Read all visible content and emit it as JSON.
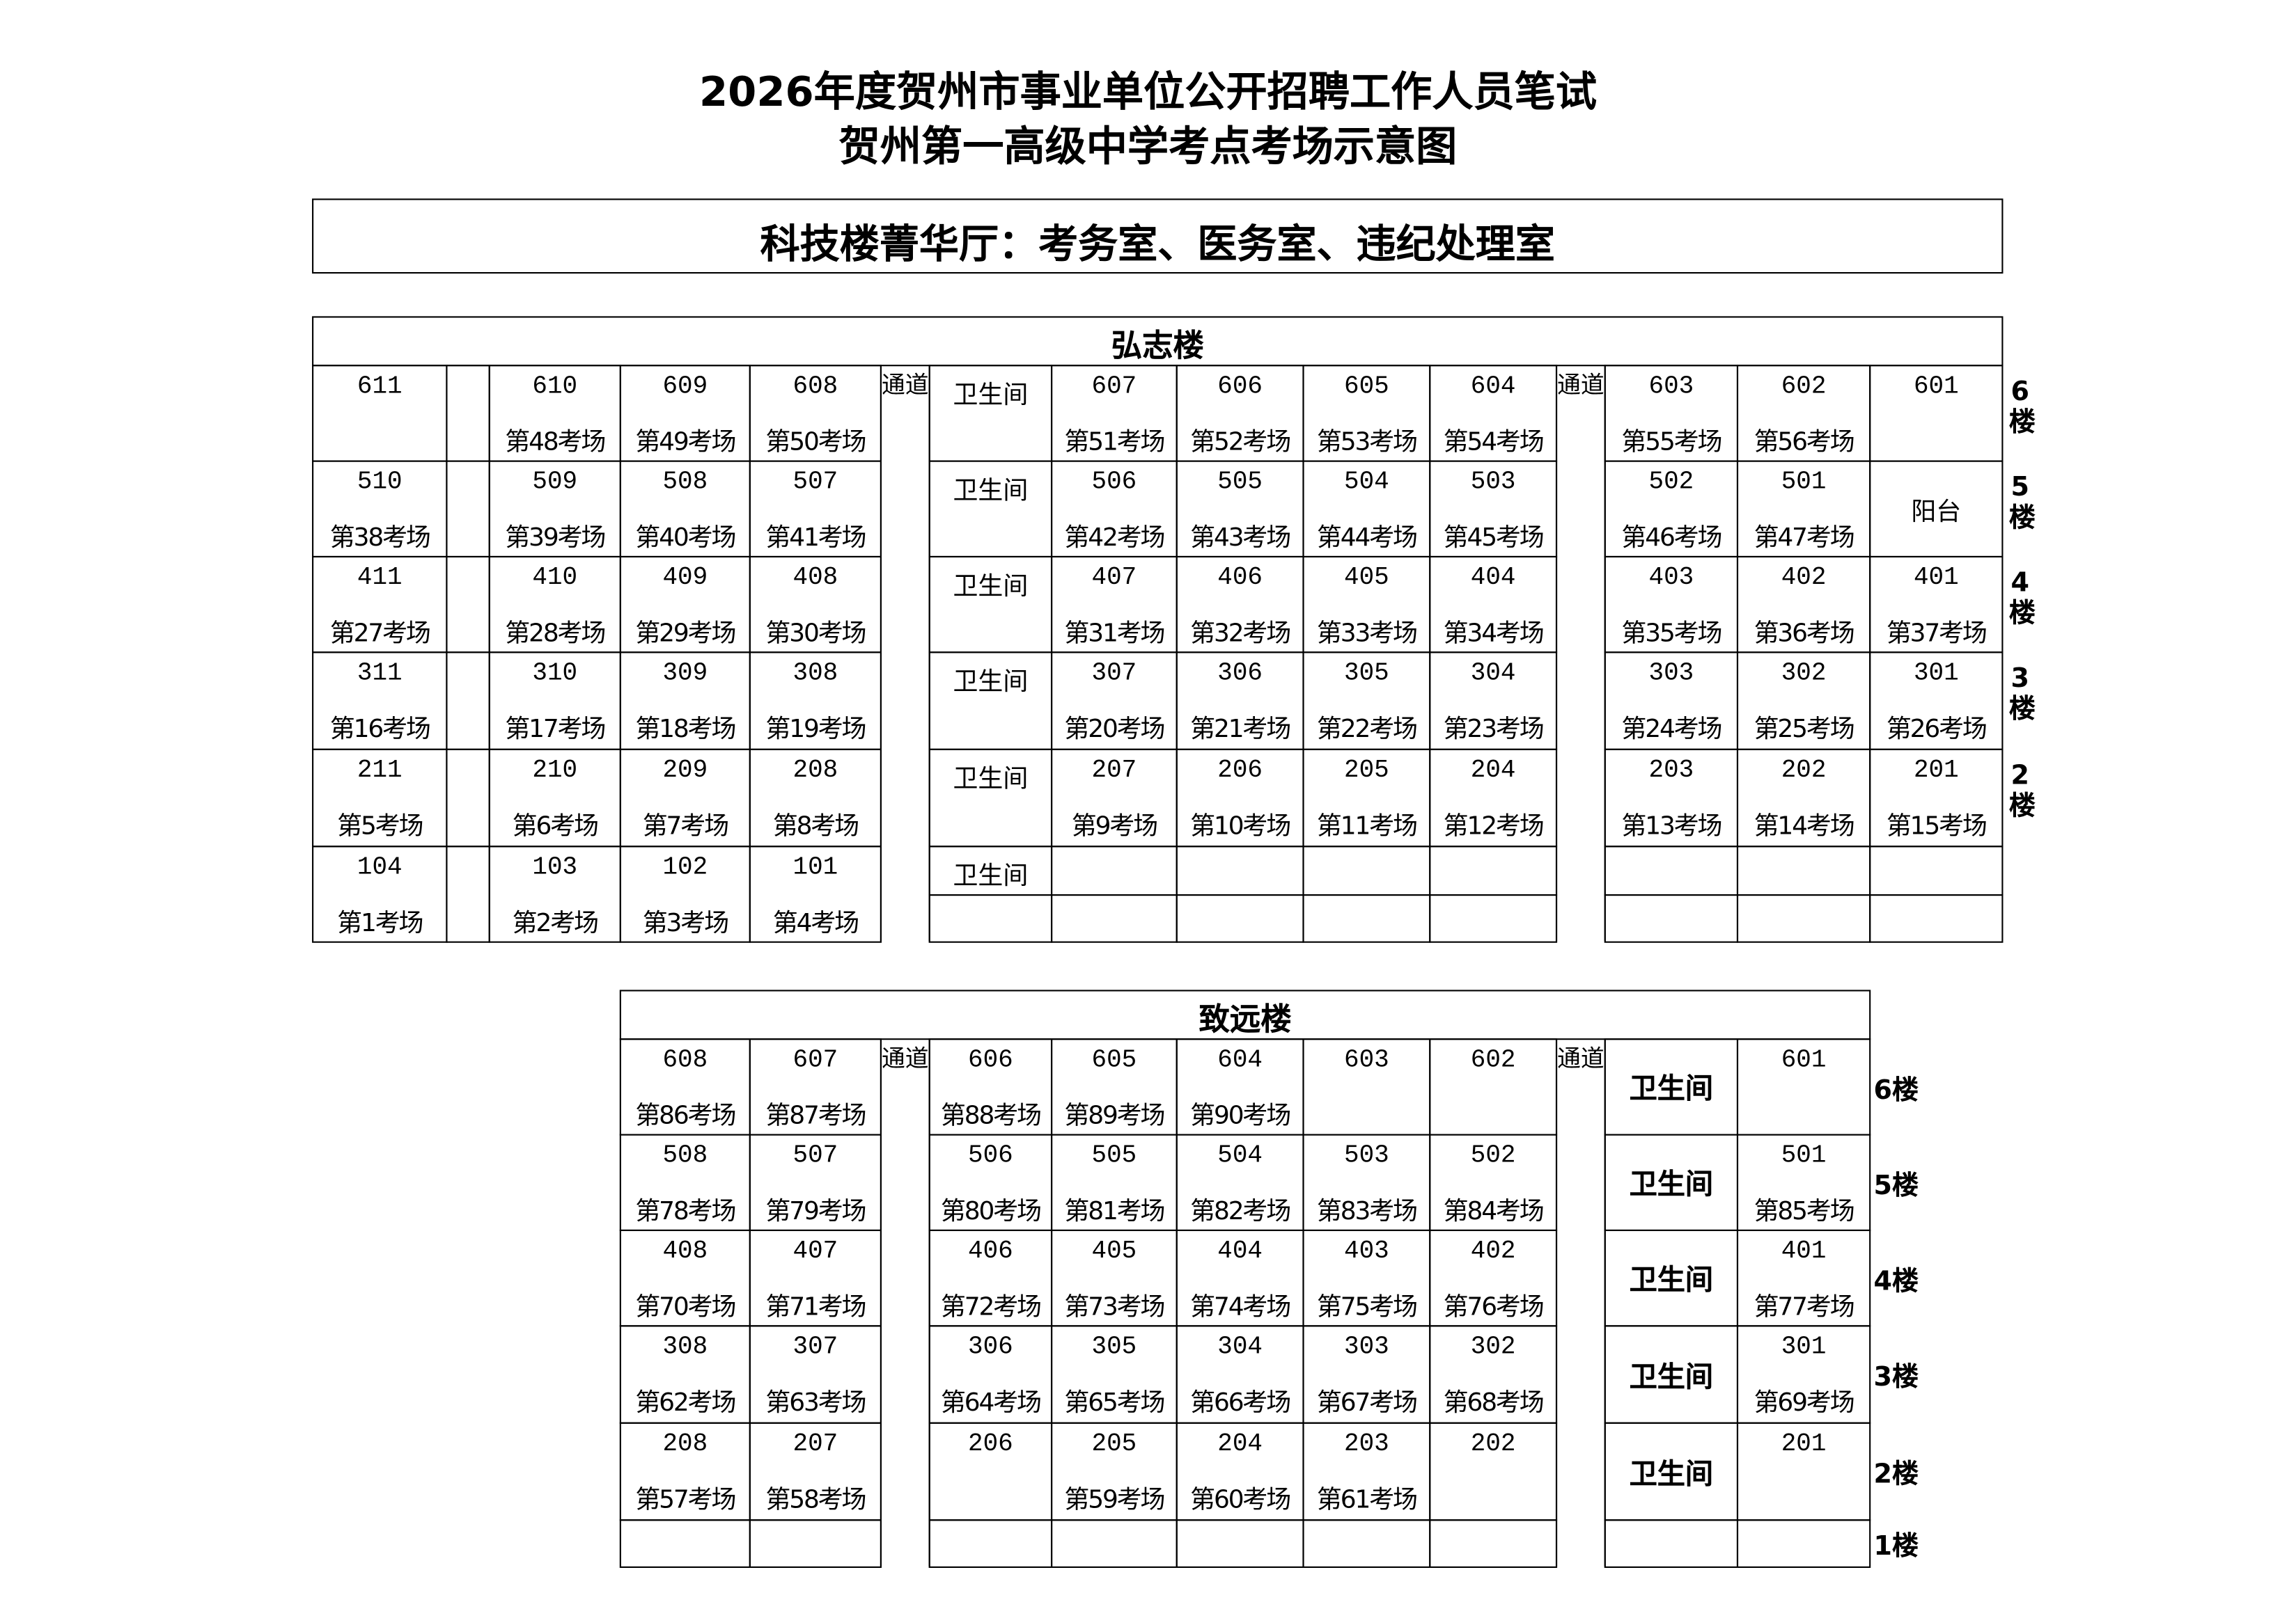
{
  "header": {
    "title_line1": "2026年度贺州市事业单位公开招聘工作人员笔试",
    "title_line2": "贺州第一高级中学考点考场示意图",
    "notice": "科技楼菁华厅：考务室、医务室、违纪处理室"
  },
  "hongzhi": {
    "title": "弘志楼",
    "corridor": "通道",
    "floors": [
      {
        "label": "6楼",
        "left": [
          {
            "room": "611",
            "exam": ""
          },
          {
            "room": "",
            "exam": ""
          },
          {
            "room": "610",
            "exam": "第48考场"
          },
          {
            "room": "609",
            "exam": "第49考场"
          },
          {
            "room": "608",
            "exam": "第50考场"
          }
        ],
        "mid": [
          {
            "text": "卫生间"
          },
          {
            "room": "607",
            "exam": "第51考场"
          },
          {
            "room": "606",
            "exam": "第52考场"
          },
          {
            "room": "605",
            "exam": "第53考场"
          },
          {
            "room": "604",
            "exam": "第54考场"
          }
        ],
        "right": [
          {
            "room": "603",
            "exam": "第55考场"
          },
          {
            "room": "602",
            "exam": "第56考场"
          },
          {
            "room": "601",
            "exam": ""
          }
        ]
      },
      {
        "label": "5楼",
        "left": [
          {
            "room": "510",
            "exam": "第38考场"
          },
          {
            "room": "",
            "exam": ""
          },
          {
            "room": "509",
            "exam": "第39考场"
          },
          {
            "room": "508",
            "exam": "第40考场"
          },
          {
            "room": "507",
            "exam": "第41考场"
          }
        ],
        "mid": [
          {
            "text": "卫生间"
          },
          {
            "room": "506",
            "exam": "第42考场"
          },
          {
            "room": "505",
            "exam": "第43考场"
          },
          {
            "room": "504",
            "exam": "第44考场"
          },
          {
            "room": "503",
            "exam": "第45考场"
          }
        ],
        "right": [
          {
            "room": "502",
            "exam": "第46考场"
          },
          {
            "room": "501",
            "exam": "第47考场"
          },
          {
            "text": "阳台",
            "center": true
          }
        ]
      },
      {
        "label": "4楼",
        "left": [
          {
            "room": "411",
            "exam": "第27考场"
          },
          {
            "room": "",
            "exam": ""
          },
          {
            "room": "410",
            "exam": "第28考场"
          },
          {
            "room": "409",
            "exam": "第29考场"
          },
          {
            "room": "408",
            "exam": "第30考场"
          }
        ],
        "mid": [
          {
            "text": "卫生间"
          },
          {
            "room": "407",
            "exam": "第31考场"
          },
          {
            "room": "406",
            "exam": "第32考场"
          },
          {
            "room": "405",
            "exam": "第33考场"
          },
          {
            "room": "404",
            "exam": "第34考场"
          }
        ],
        "right": [
          {
            "room": "403",
            "exam": "第35考场"
          },
          {
            "room": "402",
            "exam": "第36考场"
          },
          {
            "room": "401",
            "exam": "第37考场"
          }
        ]
      },
      {
        "label": "3楼",
        "left": [
          {
            "room": "311",
            "exam": "第16考场"
          },
          {
            "room": "",
            "exam": ""
          },
          {
            "room": "310",
            "exam": "第17考场"
          },
          {
            "room": "309",
            "exam": "第18考场"
          },
          {
            "room": "308",
            "exam": "第19考场"
          }
        ],
        "mid": [
          {
            "text": "卫生间"
          },
          {
            "room": "307",
            "exam": "第20考场"
          },
          {
            "room": "306",
            "exam": "第21考场"
          },
          {
            "room": "305",
            "exam": "第22考场"
          },
          {
            "room": "304",
            "exam": "第23考场"
          }
        ],
        "right": [
          {
            "room": "303",
            "exam": "第24考场"
          },
          {
            "room": "302",
            "exam": "第25考场"
          },
          {
            "room": "301",
            "exam": "第26考场"
          }
        ]
      },
      {
        "label": "2楼",
        "left": [
          {
            "room": "211",
            "exam": "第5考场"
          },
          {
            "room": "",
            "exam": ""
          },
          {
            "room": "210",
            "exam": "第6考场"
          },
          {
            "room": "209",
            "exam": "第7考场"
          },
          {
            "room": "208",
            "exam": "第8考场"
          }
        ],
        "mid": [
          {
            "text": "卫生间"
          },
          {
            "room": "207",
            "exam": "第9考场"
          },
          {
            "room": "206",
            "exam": "第10考场"
          },
          {
            "room": "205",
            "exam": "第11考场"
          },
          {
            "room": "204",
            "exam": "第12考场"
          }
        ],
        "right": [
          {
            "room": "203",
            "exam": "第13考场"
          },
          {
            "room": "202",
            "exam": "第14考场"
          },
          {
            "room": "201",
            "exam": "第15考场"
          }
        ]
      },
      {
        "label": "",
        "left": [
          {
            "room": "104",
            "exam": "第1考场"
          },
          {
            "room": "",
            "exam": ""
          },
          {
            "room": "103",
            "exam": "第2考场"
          },
          {
            "room": "102",
            "exam": "第3考场"
          },
          {
            "room": "101",
            "exam": "第4考场"
          }
        ],
        "mid": [
          {
            "text": "卫生间"
          },
          {
            "room": "",
            "exam": ""
          },
          {
            "room": "",
            "exam": ""
          },
          {
            "room": "",
            "exam": ""
          },
          {
            "room": "",
            "exam": ""
          }
        ],
        "right": [
          {
            "room": "",
            "exam": ""
          },
          {
            "room": "",
            "exam": ""
          },
          {
            "room": "",
            "exam": ""
          }
        ]
      }
    ]
  },
  "zhiyuan": {
    "title": "致远楼",
    "corridor": "通道",
    "floors": [
      {
        "label": "6楼",
        "left": [
          {
            "room": "608",
            "exam": "第86考场"
          },
          {
            "room": "607",
            "exam": "第87考场"
          }
        ],
        "mid": [
          {
            "room": "606",
            "exam": "第88考场"
          },
          {
            "room": "605",
            "exam": "第89考场"
          },
          {
            "room": "604",
            "exam": "第90考场"
          },
          {
            "room": "603",
            "exam": ""
          },
          {
            "room": "602",
            "exam": ""
          }
        ],
        "right": [
          {
            "text": "卫生间",
            "center": true,
            "bold": true
          },
          {
            "room": "601",
            "exam": ""
          }
        ]
      },
      {
        "label": "5楼",
        "left": [
          {
            "room": "508",
            "exam": "第78考场"
          },
          {
            "room": "507",
            "exam": "第79考场"
          }
        ],
        "mid": [
          {
            "room": "506",
            "exam": "第80考场"
          },
          {
            "room": "505",
            "exam": "第81考场"
          },
          {
            "room": "504",
            "exam": "第82考场"
          },
          {
            "room": "503",
            "exam": "第83考场"
          },
          {
            "room": "502",
            "exam": "第84考场"
          }
        ],
        "right": [
          {
            "text": "卫生间",
            "center": true,
            "bold": true
          },
          {
            "room": "501",
            "exam": "第85考场"
          }
        ]
      },
      {
        "label": "4楼",
        "left": [
          {
            "room": "408",
            "exam": "第70考场"
          },
          {
            "room": "407",
            "exam": "第71考场"
          }
        ],
        "mid": [
          {
            "room": "406",
            "exam": "第72考场"
          },
          {
            "room": "405",
            "exam": "第73考场"
          },
          {
            "room": "404",
            "exam": "第74考场"
          },
          {
            "room": "403",
            "exam": "第75考场"
          },
          {
            "room": "402",
            "exam": "第76考场"
          }
        ],
        "right": [
          {
            "text": "卫生间",
            "center": true,
            "bold": true
          },
          {
            "room": "401",
            "exam": "第77考场"
          }
        ]
      },
      {
        "label": "3楼",
        "left": [
          {
            "room": "308",
            "exam": "第62考场"
          },
          {
            "room": "307",
            "exam": "第63考场"
          }
        ],
        "mid": [
          {
            "room": "306",
            "exam": "第64考场"
          },
          {
            "room": "305",
            "exam": "第65考场"
          },
          {
            "room": "304",
            "exam": "第66考场"
          },
          {
            "room": "303",
            "exam": "第67考场"
          },
          {
            "room": "302",
            "exam": "第68考场"
          }
        ],
        "right": [
          {
            "text": "卫生间",
            "center": true,
            "bold": true
          },
          {
            "room": "301",
            "exam": "第69考场"
          }
        ]
      },
      {
        "label": "2楼",
        "left": [
          {
            "room": "208",
            "exam": "第57考场"
          },
          {
            "room": "207",
            "exam": "第58考场"
          }
        ],
        "mid": [
          {
            "room": "206",
            "exam": ""
          },
          {
            "room": "205",
            "exam": "第59考场"
          },
          {
            "room": "204",
            "exam": "第60考场"
          },
          {
            "room": "203",
            "exam": "第61考场"
          },
          {
            "room": "202",
            "exam": ""
          }
        ],
        "right": [
          {
            "text": "卫生间",
            "center": true,
            "bold": true
          },
          {
            "room": "201",
            "exam": ""
          }
        ]
      },
      {
        "label": "1楼",
        "left": [
          {
            "room": "",
            "exam": ""
          },
          {
            "room": "",
            "exam": ""
          }
        ],
        "mid": [
          {
            "room": "",
            "exam": ""
          },
          {
            "room": "",
            "exam": ""
          },
          {
            "room": "",
            "exam": ""
          },
          {
            "room": "",
            "exam": ""
          },
          {
            "room": "",
            "exam": ""
          }
        ],
        "right": [
          {
            "room": "",
            "exam": ""
          },
          {
            "room": "",
            "exam": ""
          }
        ]
      }
    ]
  }
}
